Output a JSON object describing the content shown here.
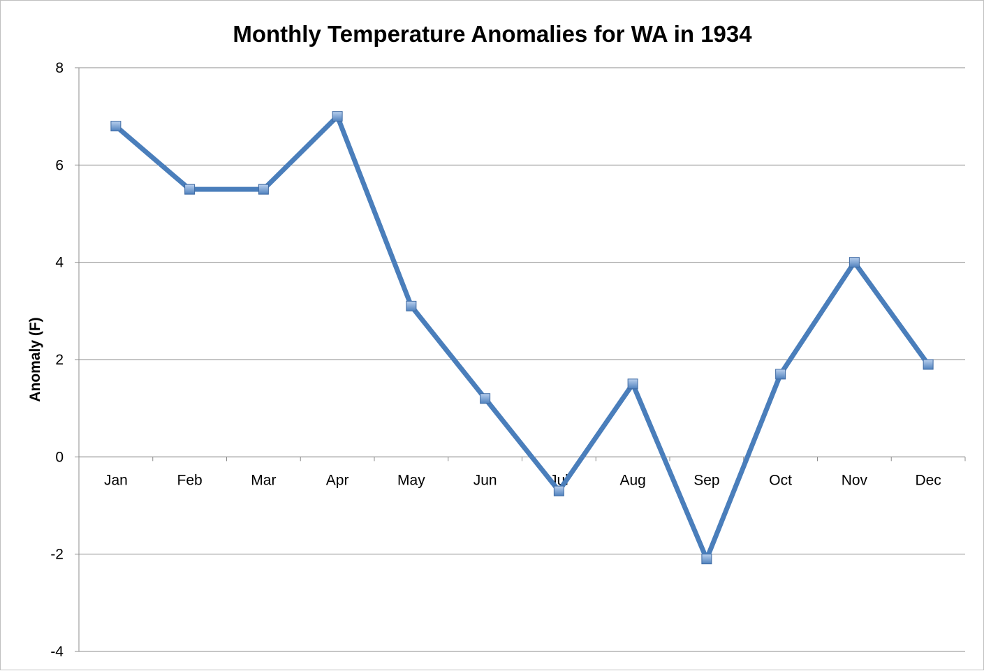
{
  "chart_data": {
    "type": "line",
    "title": "Monthly Temperature Anomalies for WA in 1934",
    "xlabel": "",
    "ylabel": "Anomaly (F)",
    "categories": [
      "Jan",
      "Feb",
      "Mar",
      "Apr",
      "May",
      "Jun",
      "Jul",
      "Aug",
      "Sep",
      "Oct",
      "Nov",
      "Dec"
    ],
    "series": [
      {
        "values": [
          6.8,
          5.5,
          5.5,
          7.0,
          3.1,
          1.2,
          -0.7,
          1.5,
          -2.1,
          1.7,
          4.0,
          1.9
        ],
        "color": "#4a7ebb",
        "marker": "square",
        "marker_color": "#4f81bd"
      }
    ],
    "ylim": [
      -4,
      8
    ],
    "yticks": [
      -4,
      -2,
      0,
      2,
      4,
      6,
      8
    ],
    "ytick_labels": [
      "-4",
      "-2",
      "0",
      "2",
      "4",
      "6",
      "8"
    ],
    "grid": true,
    "legend": "none"
  }
}
